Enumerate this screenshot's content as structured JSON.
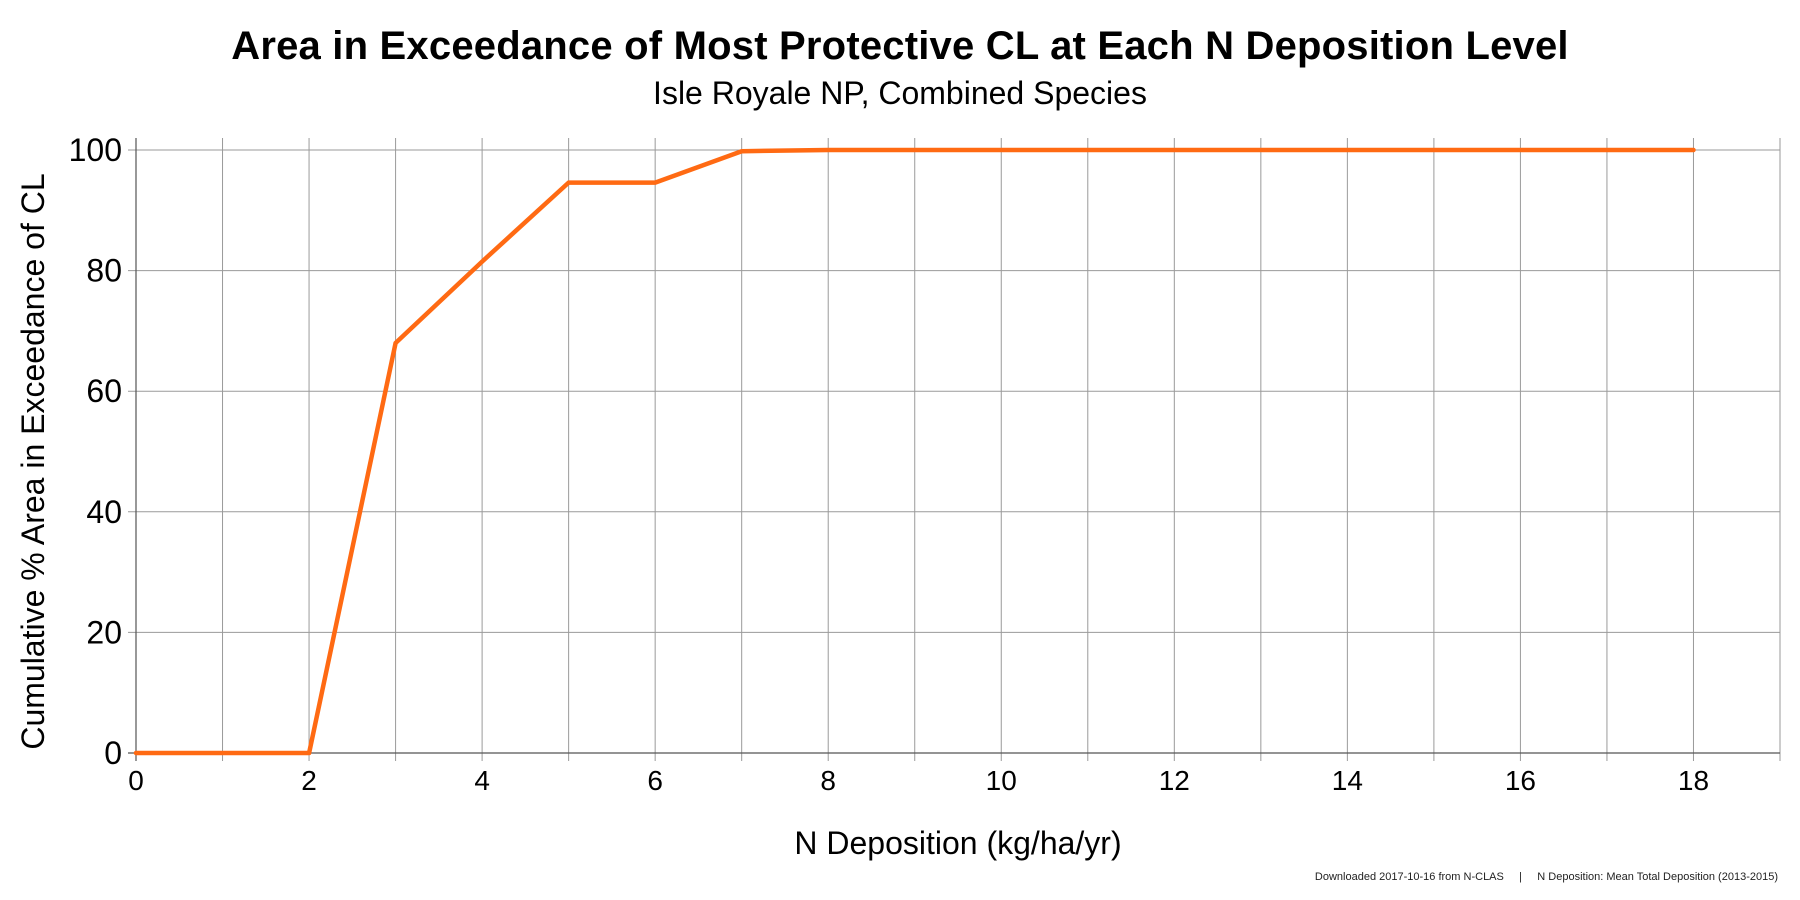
{
  "chart_data": {
    "type": "line",
    "title": "Area in Exceedance of Most Protective CL at Each N Deposition Level",
    "subtitle": "Isle Royale NP, Combined Species",
    "xlabel": "N Deposition (kg/ha/yr)",
    "ylabel": "Cumulative % Area in Exceedance of CL",
    "xlim": [
      0,
      19
    ],
    "ylim": [
      0,
      100
    ],
    "x_ticks": [
      0,
      2,
      4,
      6,
      8,
      10,
      12,
      14,
      16,
      18
    ],
    "y_ticks": [
      0,
      20,
      40,
      60,
      80,
      100
    ],
    "grid": true,
    "series": [
      {
        "color": "#ff6a13",
        "x": [
          0,
          1,
          2,
          3,
          4,
          5,
          6,
          7,
          8,
          9,
          10,
          11,
          12,
          13,
          14,
          15,
          16,
          17,
          18
        ],
        "y": [
          0,
          0,
          0,
          68,
          81.5,
          94.6,
          94.6,
          99.8,
          100,
          100,
          100,
          100,
          100,
          100,
          100,
          100,
          100,
          100,
          100
        ]
      }
    ]
  },
  "footer": {
    "source_text": "Downloaded 2017-10-16 from N-CLAS     |     N Deposition: Mean Total Deposition (2013-2015)"
  }
}
